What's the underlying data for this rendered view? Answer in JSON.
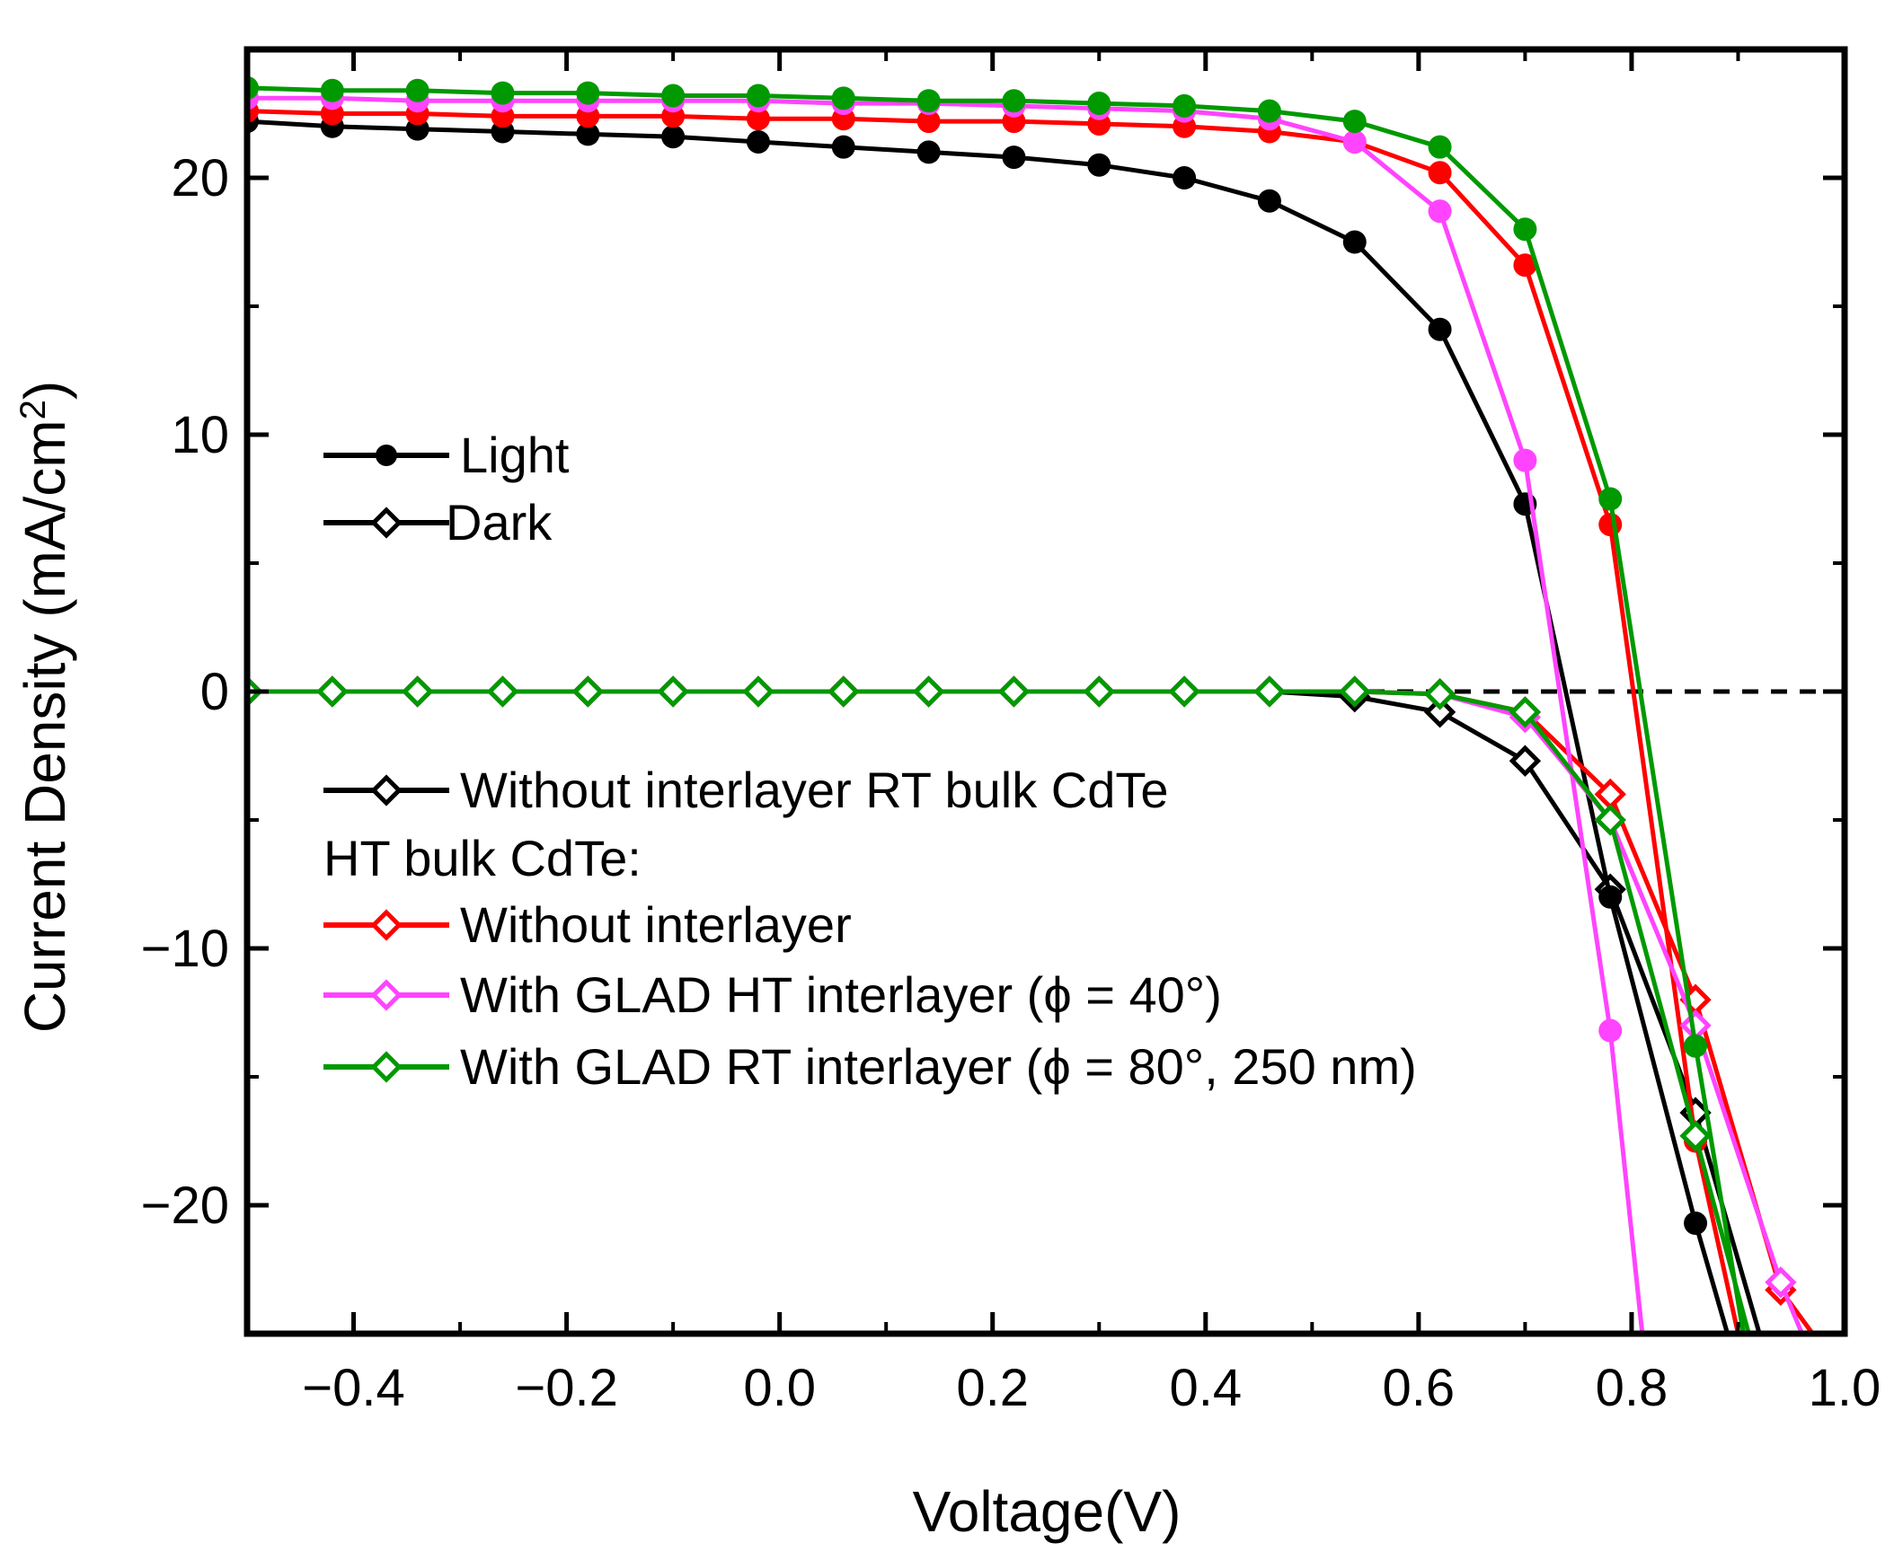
{
  "chart_data": {
    "type": "line",
    "xlabel": "Voltage(V)",
    "ylabel_main": "Current Density (mA/cm",
    "ylabel_sup": "2",
    "ylabel_end": ")",
    "xlim": [
      -0.5,
      1.0
    ],
    "ylim": [
      -25,
      25
    ],
    "xticks": [
      -0.4,
      -0.2,
      0.0,
      0.2,
      0.4,
      0.6,
      0.8,
      1.0
    ],
    "xtick_labels": [
      "−0.4",
      "−0.2",
      "0.0",
      "0.2",
      "0.4",
      "0.6",
      "0.8",
      "1.0"
    ],
    "yticks": [
      -20,
      -10,
      0,
      10,
      20
    ],
    "ytick_labels": [
      "−20",
      "−10",
      "0",
      "10",
      "20"
    ],
    "zero_line": "dashed",
    "legend_style": {
      "light": "Light",
      "dark": "Dark"
    },
    "legend_samples": {
      "header": "HT bulk CdTe:"
    },
    "series": [
      {
        "name": "Without interlayer RT bulk CdTe",
        "color": "#000000",
        "light": {
          "x": [
            -0.5,
            -0.42,
            -0.34,
            -0.26,
            -0.18,
            -0.1,
            -0.02,
            0.06,
            0.14,
            0.22,
            0.3,
            0.38,
            0.46,
            0.54,
            0.62,
            0.7,
            0.78,
            0.86,
            0.89
          ],
          "y": [
            22.2,
            22.0,
            21.9,
            21.8,
            21.7,
            21.6,
            21.4,
            21.2,
            21.0,
            20.8,
            20.5,
            20.0,
            19.1,
            17.5,
            14.1,
            7.3,
            -8.0,
            -20.7,
            -25
          ]
        },
        "dark": {
          "x": [
            -0.5,
            -0.42,
            -0.34,
            -0.26,
            -0.18,
            -0.1,
            -0.02,
            0.06,
            0.14,
            0.22,
            0.3,
            0.38,
            0.46,
            0.54,
            0.62,
            0.7,
            0.78,
            0.86,
            0.92
          ],
          "y": [
            0,
            0,
            0,
            0,
            0,
            0,
            0,
            0,
            0,
            0,
            0,
            0,
            0,
            -0.2,
            -0.8,
            -2.7,
            -7.7,
            -16.4,
            -25
          ]
        }
      },
      {
        "name": "Without interlayer",
        "color": "#ff0000",
        "light": {
          "x": [
            -0.5,
            -0.42,
            -0.34,
            -0.26,
            -0.18,
            -0.1,
            -0.02,
            0.06,
            0.14,
            0.22,
            0.3,
            0.38,
            0.46,
            0.54,
            0.62,
            0.7,
            0.78,
            0.86,
            0.9
          ],
          "y": [
            22.6,
            22.5,
            22.5,
            22.4,
            22.4,
            22.4,
            22.3,
            22.3,
            22.2,
            22.2,
            22.1,
            22.0,
            21.8,
            21.4,
            20.2,
            16.6,
            6.5,
            -17.5,
            -25
          ]
        },
        "dark": {
          "x": [
            -0.5,
            -0.42,
            -0.34,
            -0.26,
            -0.18,
            -0.1,
            -0.02,
            0.06,
            0.14,
            0.22,
            0.3,
            0.38,
            0.46,
            0.54,
            0.62,
            0.7,
            0.78,
            0.86,
            0.94,
            0.97
          ],
          "y": [
            0,
            0,
            0,
            0,
            0,
            0,
            0,
            0,
            0,
            0,
            0,
            0,
            0,
            0,
            -0.1,
            -0.8,
            -4.0,
            -12.0,
            -23.3,
            -25
          ]
        }
      },
      {
        "name": "With GLAD HT interlayer (ϕ = 40°)",
        "color": "#ff44ff",
        "light": {
          "x": [
            -0.5,
            -0.42,
            -0.34,
            -0.26,
            -0.18,
            -0.1,
            -0.02,
            0.06,
            0.14,
            0.22,
            0.3,
            0.38,
            0.46,
            0.54,
            0.62,
            0.7,
            0.78,
            0.81
          ],
          "y": [
            23.1,
            23.1,
            23.0,
            23.0,
            23.0,
            23.0,
            23.0,
            22.9,
            22.9,
            22.8,
            22.7,
            22.6,
            22.3,
            21.4,
            18.7,
            9.0,
            -13.2,
            -25
          ]
        },
        "dark": {
          "x": [
            -0.5,
            -0.42,
            -0.34,
            -0.26,
            -0.18,
            -0.1,
            -0.02,
            0.06,
            0.14,
            0.22,
            0.3,
            0.38,
            0.46,
            0.54,
            0.62,
            0.7,
            0.78,
            0.86,
            0.94,
            0.96
          ],
          "y": [
            0,
            0,
            0,
            0,
            0,
            0,
            0,
            0,
            0,
            0,
            0,
            0,
            0,
            0,
            -0.1,
            -1.0,
            -5.0,
            -13.0,
            -23.0,
            -25
          ]
        }
      },
      {
        "name": "With GLAD RT interlayer (ϕ = 80°, 250 nm)",
        "color": "#009900",
        "light": {
          "x": [
            -0.5,
            -0.42,
            -0.34,
            -0.26,
            -0.18,
            -0.1,
            -0.02,
            0.06,
            0.14,
            0.22,
            0.3,
            0.38,
            0.46,
            0.54,
            0.62,
            0.7,
            0.78,
            0.86,
            0.905
          ],
          "y": [
            23.5,
            23.4,
            23.4,
            23.3,
            23.3,
            23.2,
            23.2,
            23.1,
            23.0,
            23.0,
            22.9,
            22.8,
            22.6,
            22.2,
            21.2,
            18.0,
            7.5,
            -13.8,
            -25
          ]
        },
        "dark": {
          "x": [
            -0.5,
            -0.42,
            -0.34,
            -0.26,
            -0.18,
            -0.1,
            -0.02,
            0.06,
            0.14,
            0.22,
            0.3,
            0.38,
            0.46,
            0.54,
            0.62,
            0.7,
            0.78,
            0.86,
            0.91
          ],
          "y": [
            0,
            0,
            0,
            0,
            0,
            0,
            0,
            0,
            0,
            0,
            0,
            0,
            0,
            0,
            -0.1,
            -0.8,
            -5.0,
            -17.3,
            -25
          ]
        }
      }
    ]
  }
}
